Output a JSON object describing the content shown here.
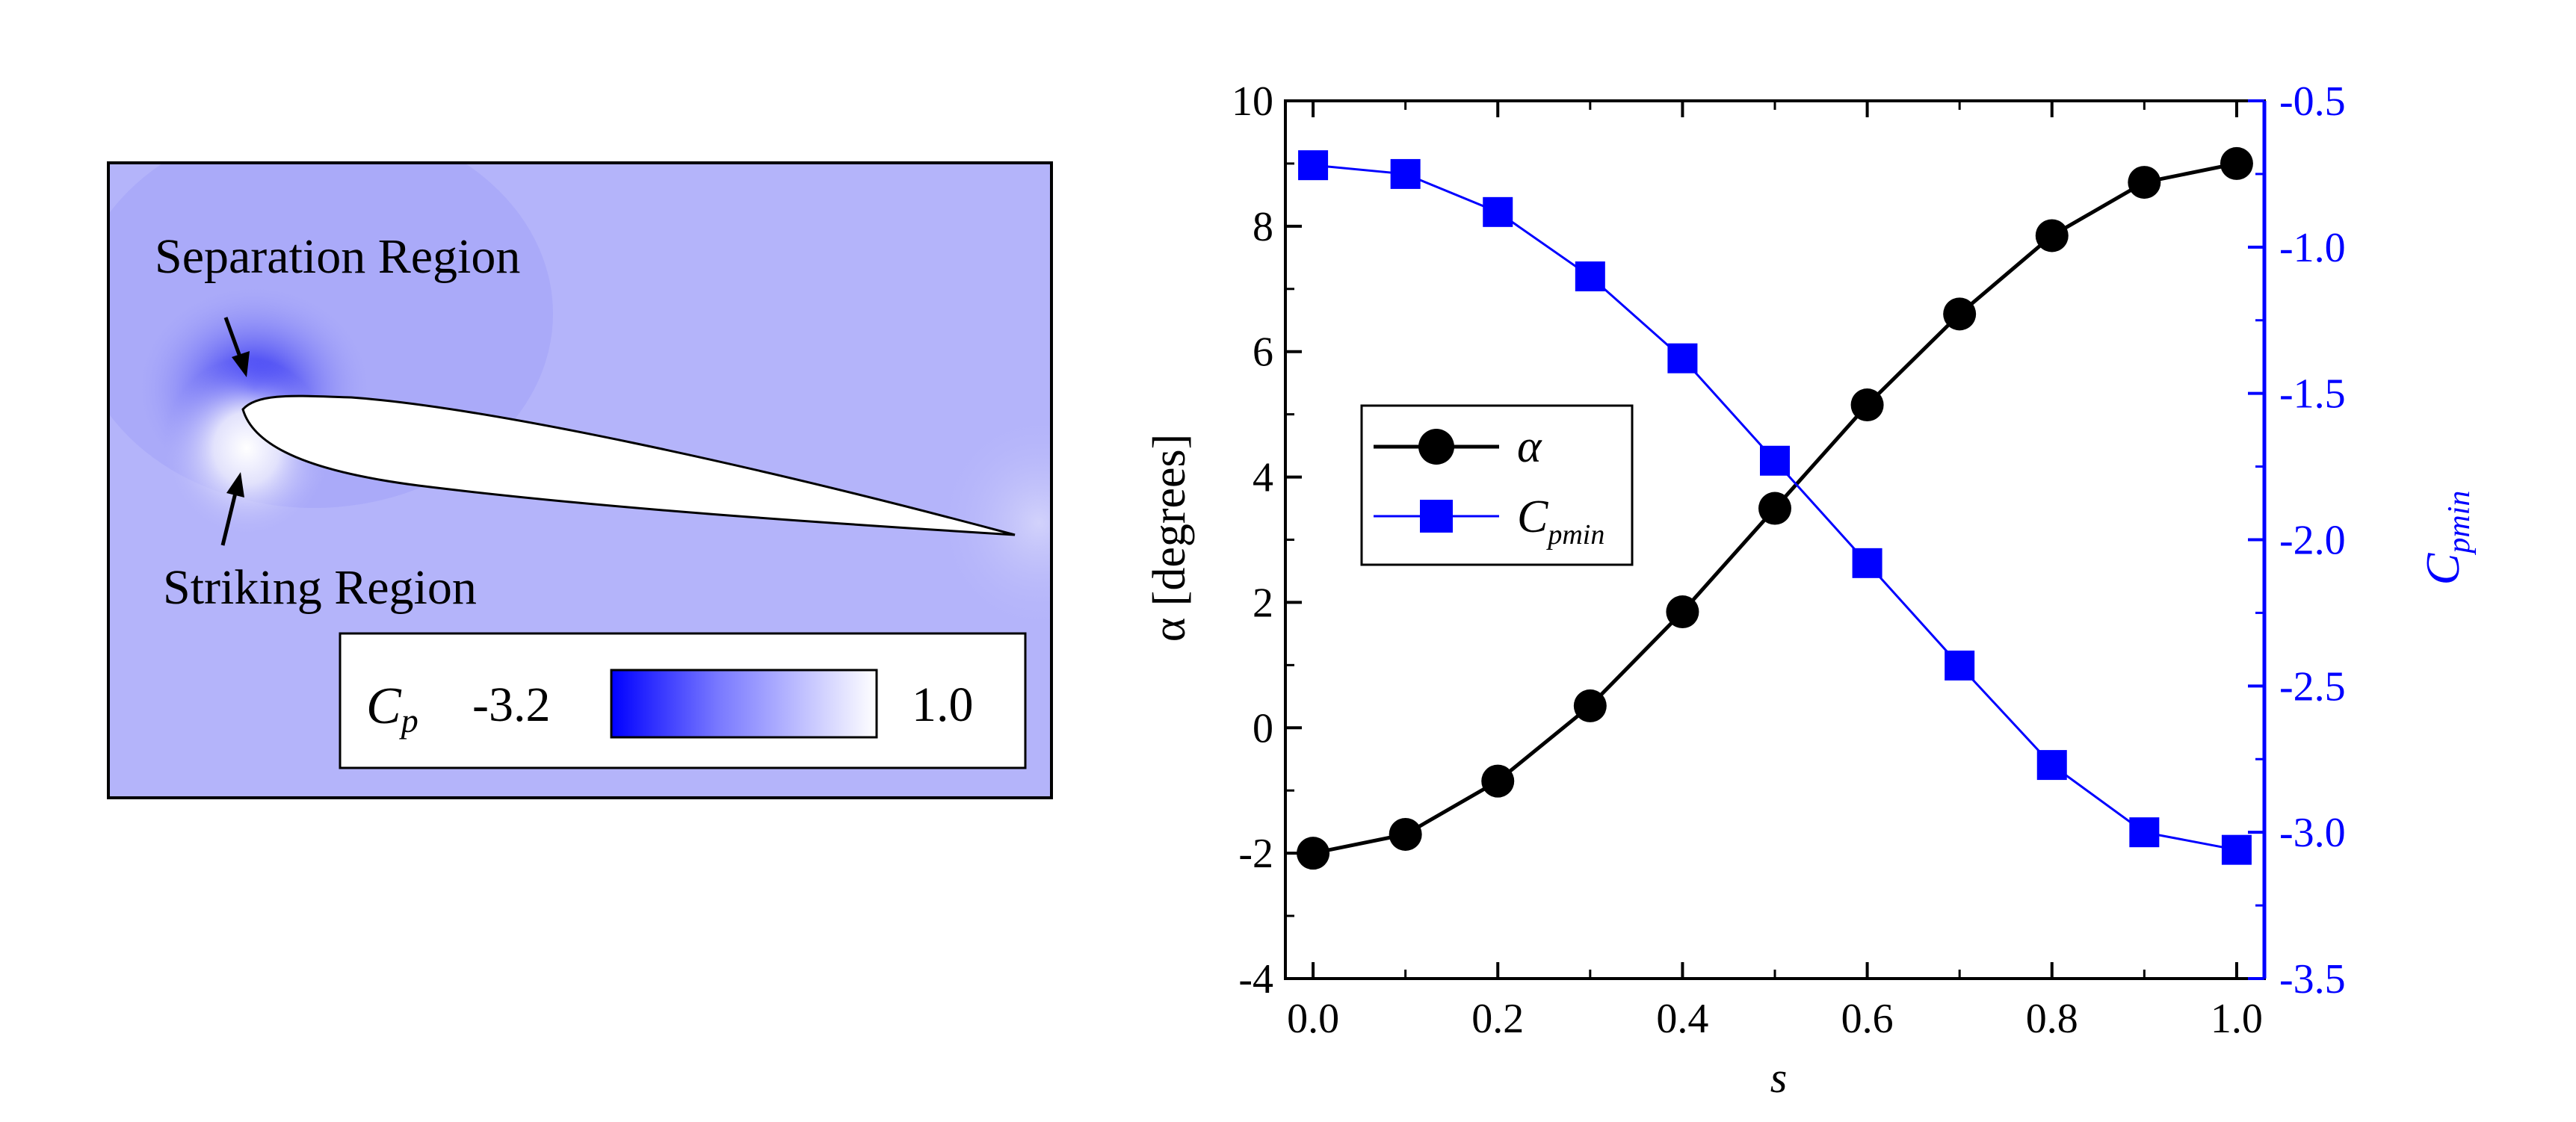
{
  "colors": {
    "black": "#000000",
    "blue": "#0000ff",
    "flow_background": "#b4b4fa",
    "airfoil_fill": "#ffffff"
  },
  "contour_panel": {
    "labels": {
      "separation": "Separation Region",
      "striking": "Striking Region"
    },
    "colorbar": {
      "symbol": "C",
      "subscript": "p",
      "min_label": "-3.2",
      "max_label": "1.0",
      "min_value": -3.2,
      "max_value": 1.0,
      "min_color": "#0000ff",
      "max_color": "#ffffff"
    }
  },
  "chart_data": {
    "type": "line",
    "title": "",
    "xlabel": "s",
    "ylabel_left": "α [degrees]",
    "ylabel_right_symbol": "C",
    "ylabel_right_subscript": "pmin",
    "xlim": [
      -0.03,
      1.03
    ],
    "ylim_left": [
      -4,
      10
    ],
    "ylim_right": [
      -3.5,
      -0.5
    ],
    "x_ticks": [
      0.0,
      0.2,
      0.4,
      0.6,
      0.8,
      1.0
    ],
    "x_tick_labels": [
      "0.0",
      "0.2",
      "0.4",
      "0.6",
      "0.8",
      "1.0"
    ],
    "y_left_ticks": [
      -4,
      -2,
      0,
      2,
      4,
      6,
      8,
      10
    ],
    "y_left_tick_labels": [
      "-4",
      "-2",
      "0",
      "2",
      "4",
      "6",
      "8",
      "10"
    ],
    "y_right_ticks": [
      -3.5,
      -3.0,
      -2.5,
      -2.0,
      -1.5,
      -1.0,
      -0.5
    ],
    "y_right_tick_labels": [
      "-3.5",
      "-3.0",
      "-2.5",
      "-2.0",
      "-1.5",
      "-1.0",
      "-0.5"
    ],
    "grid": false,
    "legend_position": "center-left",
    "x": [
      0.0,
      0.1,
      0.2,
      0.3,
      0.4,
      0.5,
      0.6,
      0.7,
      0.8,
      0.9,
      1.0
    ],
    "series": [
      {
        "name": "α",
        "legend_symbol": "α",
        "legend_subscript": "",
        "axis": "left",
        "marker": "circle",
        "color": "#000000",
        "values": [
          -2.0,
          -1.7,
          -0.85,
          0.35,
          1.85,
          3.5,
          5.15,
          6.6,
          7.85,
          8.7,
          9.0
        ]
      },
      {
        "name": "Cpmin",
        "legend_symbol": "C",
        "legend_subscript": "pmin",
        "axis": "right",
        "marker": "square",
        "color": "#0000ff",
        "values": [
          -0.72,
          -0.75,
          -0.88,
          -1.1,
          -1.38,
          -1.73,
          -2.08,
          -2.43,
          -2.77,
          -3.0,
          -3.06
        ]
      }
    ]
  }
}
